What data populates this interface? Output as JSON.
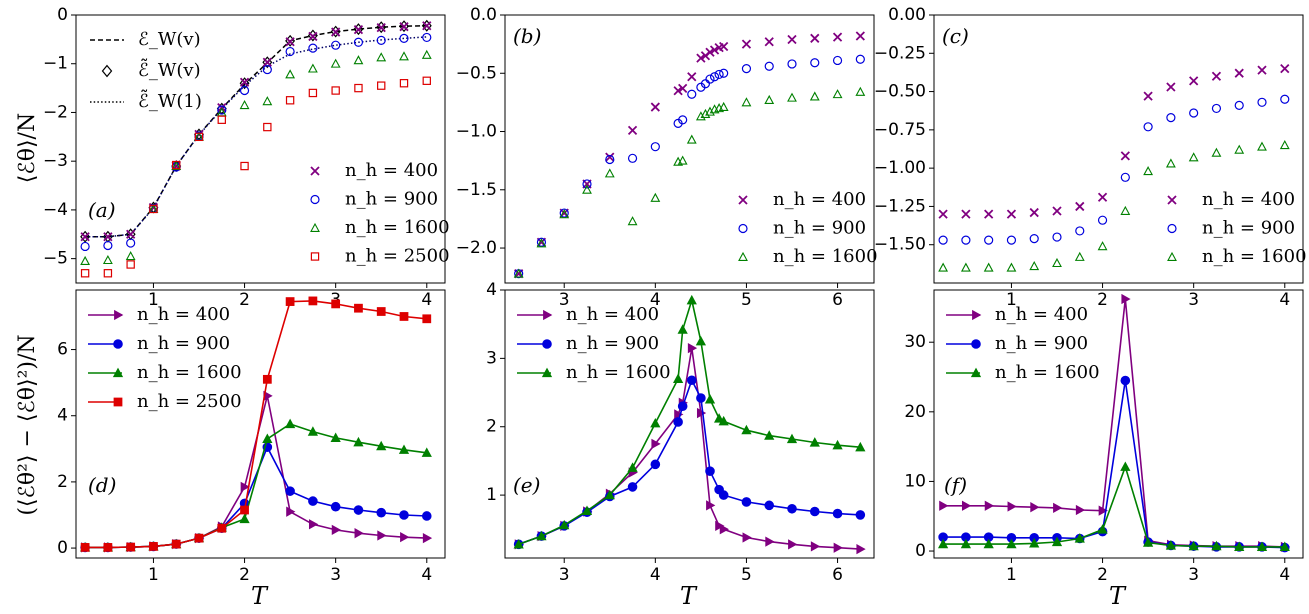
{
  "figure": {
    "x_axis_label": "T",
    "y_labels": {
      "top": "⟨ℰθ⟩/N",
      "bottom": "(⟨ℰθ²⟩ − ⟨ℰθ⟩²)/N"
    }
  },
  "colors": {
    "nh400": "#800080",
    "nh900": "#0000dd",
    "nh1600": "#008000",
    "nh2500": "#dd0000",
    "black": "#000000"
  },
  "chart_data": [
    {
      "id": "a",
      "type": "scatter",
      "panel_label": "(a)",
      "xlim": [
        0.15,
        4.2
      ],
      "ylim": [
        -5.5,
        0
      ],
      "xticks": [
        1,
        2,
        3,
        4
      ],
      "yticks": [
        0,
        -1,
        -2,
        -3,
        -4,
        -5
      ],
      "ytick_labels": [
        "0",
        "−1",
        "−2",
        "−3",
        "−4",
        "−5"
      ],
      "x": [
        0.25,
        0.5,
        0.75,
        1.0,
        1.25,
        1.5,
        1.75,
        2.0,
        2.25,
        2.5,
        2.75,
        3.0,
        3.25,
        3.5,
        3.75,
        4.0
      ],
      "series": [
        {
          "name": "n_h=400",
          "marker": "x",
          "color": "nh400",
          "values": [
            -4.55,
            -4.55,
            -4.5,
            -3.95,
            -3.1,
            -2.45,
            -1.9,
            -1.38,
            -0.97,
            -0.55,
            -0.44,
            -0.35,
            -0.3,
            -0.26,
            -0.24,
            -0.22
          ]
        },
        {
          "name": "n_h=900",
          "marker": "circle",
          "color": "nh900",
          "values": [
            -4.75,
            -4.73,
            -4.68,
            -3.97,
            -3.12,
            -2.48,
            -1.95,
            -1.55,
            -1.12,
            -0.75,
            -0.68,
            -0.62,
            -0.56,
            -0.52,
            -0.48,
            -0.46
          ]
        },
        {
          "name": "n_h=1600",
          "marker": "triangle",
          "color": "nh1600",
          "values": [
            -5.05,
            -5.03,
            -4.95,
            -3.98,
            -3.1,
            -2.5,
            -2.0,
            -1.85,
            -1.77,
            -1.22,
            -1.1,
            -1.0,
            -0.93,
            -0.87,
            -0.85,
            -0.82
          ]
        },
        {
          "name": "n_h=2500",
          "marker": "square",
          "color": "nh2500",
          "values": [
            -5.3,
            -5.3,
            -5.12,
            -3.98,
            -3.08,
            -2.5,
            -2.15,
            -3.1,
            -2.3,
            -1.75,
            -1.6,
            -1.55,
            -1.5,
            -1.45,
            -1.4,
            -1.35
          ]
        }
      ],
      "lines": [
        {
          "name": "ℰ_W(v)",
          "style": "dashed",
          "color": "black",
          "values": [
            -4.55,
            -4.55,
            -4.5,
            -3.95,
            -3.1,
            -2.45,
            -1.92,
            -1.42,
            -0.98,
            -0.53,
            -0.42,
            -0.34,
            -0.29,
            -0.25,
            -0.23,
            -0.22
          ]
        },
        {
          "name": "ℰ̃_W(v)",
          "style": "diamond",
          "color": "black",
          "values": [
            -4.55,
            -4.55,
            -4.5,
            -3.95,
            -3.1,
            -2.45,
            -1.92,
            -1.4,
            -0.97,
            -0.53,
            -0.42,
            -0.34,
            -0.29,
            -0.25,
            -0.23,
            -0.22
          ]
        },
        {
          "name": "ℰ̃_W(1)",
          "style": "dotted",
          "color": "nh900",
          "values": [
            -4.55,
            -4.55,
            -4.5,
            -3.96,
            -3.1,
            -2.46,
            -1.93,
            -1.45,
            -1.05,
            -0.8,
            -0.7,
            -0.62,
            -0.56,
            -0.51,
            -0.48,
            -0.45
          ]
        }
      ],
      "legend_lines": [
        "ℰ_W(v)",
        "ℰ̃_W(v)",
        "ℰ̃_W(1)"
      ],
      "legend": [
        "n_h = 400",
        "n_h = 900",
        "n_h = 1600",
        "n_h = 2500"
      ]
    },
    {
      "id": "b",
      "type": "scatter",
      "panel_label": "(b)",
      "xlim": [
        2.35,
        6.4
      ],
      "ylim": [
        -2.3,
        0.0
      ],
      "xticks": [
        3,
        4,
        5,
        6
      ],
      "yticks": [
        0.0,
        -0.5,
        -1.0,
        -1.5,
        -2.0
      ],
      "ytick_labels": [
        "0.0",
        "−0.5",
        "−1.0",
        "−1.5",
        "−2.0"
      ],
      "series": [
        {
          "name": "n_h=400",
          "marker": "x",
          "color": "nh400",
          "x": [
            2.5,
            2.75,
            3.0,
            3.25,
            3.5,
            3.75,
            4.0,
            4.25,
            4.3,
            4.4,
            4.5,
            4.55,
            4.6,
            4.65,
            4.7,
            4.75,
            5.0,
            5.25,
            5.5,
            5.75,
            6.0,
            6.25
          ],
          "values": [
            -2.22,
            -1.95,
            -1.7,
            -1.45,
            -1.22,
            -0.99,
            -0.79,
            -0.65,
            -0.63,
            -0.53,
            -0.37,
            -0.35,
            -0.32,
            -0.3,
            -0.28,
            -0.27,
            -0.25,
            -0.23,
            -0.21,
            -0.2,
            -0.19,
            -0.18
          ]
        },
        {
          "name": "n_h=900",
          "marker": "circle",
          "color": "nh900",
          "x": [
            2.5,
            2.75,
            3.0,
            3.25,
            3.5,
            3.75,
            4.0,
            4.25,
            4.3,
            4.4,
            4.5,
            4.55,
            4.6,
            4.65,
            4.7,
            4.75,
            5.0,
            5.25,
            5.5,
            5.75,
            6.0,
            6.25
          ],
          "values": [
            -2.22,
            -1.95,
            -1.7,
            -1.45,
            -1.24,
            -1.23,
            -1.13,
            -0.93,
            -0.9,
            -0.68,
            -0.62,
            -0.59,
            -0.55,
            -0.53,
            -0.51,
            -0.5,
            -0.46,
            -0.44,
            -0.42,
            -0.41,
            -0.39,
            -0.38
          ]
        },
        {
          "name": "n_h=1600",
          "marker": "triangle",
          "color": "nh1600",
          "x": [
            2.5,
            2.75,
            3.0,
            3.25,
            3.5,
            3.75,
            4.0,
            4.25,
            4.3,
            4.4,
            4.5,
            4.55,
            4.6,
            4.65,
            4.7,
            4.75,
            5.0,
            5.25,
            5.5,
            5.75,
            6.0,
            6.25
          ],
          "values": [
            -2.22,
            -1.96,
            -1.71,
            -1.5,
            -1.36,
            -1.77,
            -1.57,
            -1.26,
            -1.25,
            -1.07,
            -0.87,
            -0.85,
            -0.83,
            -0.81,
            -0.8,
            -0.79,
            -0.75,
            -0.73,
            -0.71,
            -0.7,
            -0.68,
            -0.66
          ]
        }
      ],
      "legend": [
        "n_h = 400",
        "n_h = 900",
        "n_h = 1600"
      ]
    },
    {
      "id": "c",
      "type": "scatter",
      "panel_label": "(c)",
      "xlim": [
        0.15,
        4.2
      ],
      "ylim": [
        -1.75,
        0.0
      ],
      "xticks": [
        1,
        2,
        3,
        4
      ],
      "yticks": [
        0.0,
        -0.25,
        -0.5,
        -0.75,
        -1.0,
        -1.25,
        -1.5
      ],
      "ytick_labels": [
        "0.00",
        "−0.25",
        "−0.50",
        "−0.75",
        "−1.00",
        "−1.25",
        "−1.50"
      ],
      "x": [
        0.25,
        0.5,
        0.75,
        1.0,
        1.25,
        1.5,
        1.75,
        2.0,
        2.25,
        2.5,
        2.75,
        3.0,
        3.25,
        3.5,
        3.75,
        4.0
      ],
      "series": [
        {
          "name": "n_h=400",
          "marker": "x",
          "color": "nh400",
          "values": [
            -1.3,
            -1.3,
            -1.3,
            -1.3,
            -1.29,
            -1.28,
            -1.25,
            -1.19,
            -0.92,
            -0.53,
            -0.47,
            -0.43,
            -0.4,
            -0.38,
            -0.36,
            -0.35
          ]
        },
        {
          "name": "n_h=900",
          "marker": "circle",
          "color": "nh900",
          "values": [
            -1.47,
            -1.47,
            -1.47,
            -1.47,
            -1.46,
            -1.45,
            -1.41,
            -1.34,
            -1.06,
            -0.73,
            -0.67,
            -0.64,
            -0.61,
            -0.59,
            -0.57,
            -0.55
          ]
        },
        {
          "name": "n_h=1600",
          "marker": "triangle",
          "color": "nh1600",
          "values": [
            -1.65,
            -1.65,
            -1.65,
            -1.65,
            -1.64,
            -1.62,
            -1.58,
            -1.51,
            -1.28,
            -1.02,
            -0.97,
            -0.93,
            -0.9,
            -0.88,
            -0.86,
            -0.85
          ]
        }
      ],
      "legend": [
        "n_h = 400",
        "n_h = 900",
        "n_h = 1600"
      ]
    },
    {
      "id": "d",
      "type": "line",
      "panel_label": "(d)",
      "xlim": [
        0.15,
        4.2
      ],
      "ylim": [
        -0.3,
        7.8
      ],
      "xticks": [
        1,
        2,
        3,
        4
      ],
      "yticks": [
        0,
        2,
        4,
        6
      ],
      "ytick_labels": [
        "0",
        "2",
        "4",
        "6"
      ],
      "x": [
        0.25,
        0.5,
        0.75,
        1.0,
        1.25,
        1.5,
        1.75,
        2.0,
        2.25,
        2.5,
        2.75,
        3.0,
        3.25,
        3.5,
        3.75,
        4.0
      ],
      "series": [
        {
          "name": "n_h=400",
          "marker": "triangle-right",
          "color": "nh400",
          "values": [
            0.02,
            0.02,
            0.03,
            0.05,
            0.12,
            0.3,
            0.65,
            1.85,
            4.6,
            1.1,
            0.72,
            0.55,
            0.45,
            0.38,
            0.33,
            0.3
          ]
        },
        {
          "name": "n_h=900",
          "marker": "circle",
          "color": "nh900",
          "values": [
            0.02,
            0.02,
            0.03,
            0.05,
            0.12,
            0.3,
            0.6,
            1.35,
            3.05,
            1.72,
            1.42,
            1.25,
            1.15,
            1.07,
            1.0,
            0.97
          ]
        },
        {
          "name": "n_h=1600",
          "marker": "triangle",
          "color": "nh1600",
          "values": [
            0.02,
            0.02,
            0.03,
            0.05,
            0.12,
            0.3,
            0.62,
            0.88,
            3.3,
            3.75,
            3.52,
            3.33,
            3.2,
            3.08,
            2.97,
            2.88
          ]
        },
        {
          "name": "n_h=2500",
          "marker": "square",
          "color": "nh2500",
          "values": [
            0.02,
            0.02,
            0.03,
            0.05,
            0.12,
            0.3,
            0.6,
            1.15,
            5.1,
            7.45,
            7.47,
            7.38,
            7.25,
            7.15,
            7.0,
            6.93
          ]
        }
      ],
      "legend": [
        "n_h = 400",
        "n_h = 900",
        "n_h = 1600",
        "n_h = 2500"
      ]
    },
    {
      "id": "e",
      "type": "line",
      "panel_label": "(e)",
      "xlim": [
        2.35,
        6.4
      ],
      "ylim": [
        0.08,
        4.0
      ],
      "xticks": [
        3,
        4,
        5,
        6
      ],
      "yticks": [
        1,
        2,
        3,
        4
      ],
      "ytick_labels": [
        "1",
        "2",
        "3",
        "4"
      ],
      "series": [
        {
          "name": "n_h=400",
          "marker": "triangle-right",
          "color": "nh400",
          "x": [
            2.5,
            2.75,
            3.0,
            3.25,
            3.5,
            3.75,
            4.0,
            4.25,
            4.3,
            4.4,
            4.5,
            4.6,
            4.7,
            4.75,
            5.0,
            5.25,
            5.5,
            5.75,
            6.0,
            6.25
          ],
          "values": [
            0.28,
            0.4,
            0.55,
            0.76,
            1.02,
            1.33,
            1.75,
            2.18,
            2.35,
            3.15,
            2.2,
            0.85,
            0.55,
            0.5,
            0.38,
            0.32,
            0.28,
            0.25,
            0.23,
            0.21
          ]
        },
        {
          "name": "n_h=900",
          "marker": "circle",
          "color": "nh900",
          "x": [
            2.5,
            2.75,
            3.0,
            3.25,
            3.5,
            3.75,
            4.0,
            4.25,
            4.3,
            4.4,
            4.5,
            4.6,
            4.7,
            4.75,
            5.0,
            5.25,
            5.5,
            5.75,
            6.0,
            6.25
          ],
          "values": [
            0.28,
            0.4,
            0.55,
            0.75,
            0.98,
            1.12,
            1.45,
            2.07,
            2.3,
            2.68,
            2.42,
            1.35,
            1.08,
            1.0,
            0.9,
            0.85,
            0.8,
            0.76,
            0.73,
            0.71
          ]
        },
        {
          "name": "n_h=1600",
          "marker": "triangle",
          "color": "nh1600",
          "x": [
            2.5,
            2.75,
            3.0,
            3.25,
            3.5,
            3.75,
            4.0,
            4.25,
            4.3,
            4.4,
            4.5,
            4.6,
            4.7,
            4.75,
            5.0,
            5.25,
            5.5,
            5.75,
            6.0,
            6.25
          ],
          "values": [
            0.28,
            0.4,
            0.56,
            0.77,
            1.0,
            1.4,
            2.05,
            2.7,
            3.42,
            3.85,
            3.25,
            2.4,
            2.12,
            2.08,
            1.95,
            1.87,
            1.82,
            1.77,
            1.73,
            1.7
          ]
        }
      ],
      "legend": [
        "n_h = 400",
        "n_h = 900",
        "n_h = 1600"
      ]
    },
    {
      "id": "f",
      "type": "line",
      "panel_label": "(f)",
      "xlim": [
        0.15,
        4.2
      ],
      "ylim": [
        -1.0,
        37.5
      ],
      "xticks": [
        1,
        2,
        3,
        4
      ],
      "yticks": [
        0,
        10,
        20,
        30
      ],
      "ytick_labels": [
        "0",
        "10",
        "20",
        "30"
      ],
      "x": [
        0.25,
        0.5,
        0.75,
        1.0,
        1.25,
        1.5,
        1.75,
        2.0,
        2.25,
        2.5,
        2.75,
        3.0,
        3.25,
        3.5,
        3.75,
        4.0
      ],
      "series": [
        {
          "name": "n_h=400",
          "marker": "triangle-right",
          "color": "nh400",
          "values": [
            6.5,
            6.5,
            6.5,
            6.4,
            6.3,
            6.2,
            5.9,
            5.8,
            36.2,
            1.5,
            0.9,
            0.8,
            0.7,
            0.7,
            0.7,
            0.6
          ]
        },
        {
          "name": "n_h=900",
          "marker": "circle",
          "color": "nh900",
          "values": [
            2.0,
            2.0,
            2.0,
            1.9,
            1.9,
            1.9,
            1.8,
            2.8,
            24.5,
            1.3,
            0.8,
            0.7,
            0.6,
            0.6,
            0.6,
            0.5
          ]
        },
        {
          "name": "n_h=1600",
          "marker": "triangle",
          "color": "nh1600",
          "values": [
            1.0,
            1.0,
            1.0,
            1.0,
            1.1,
            1.3,
            1.8,
            3.1,
            12.1,
            1.2,
            0.8,
            0.7,
            0.7,
            0.6,
            0.6,
            0.6
          ]
        }
      ],
      "legend": [
        "n_h = 400",
        "n_h = 900",
        "n_h = 1600"
      ]
    }
  ]
}
